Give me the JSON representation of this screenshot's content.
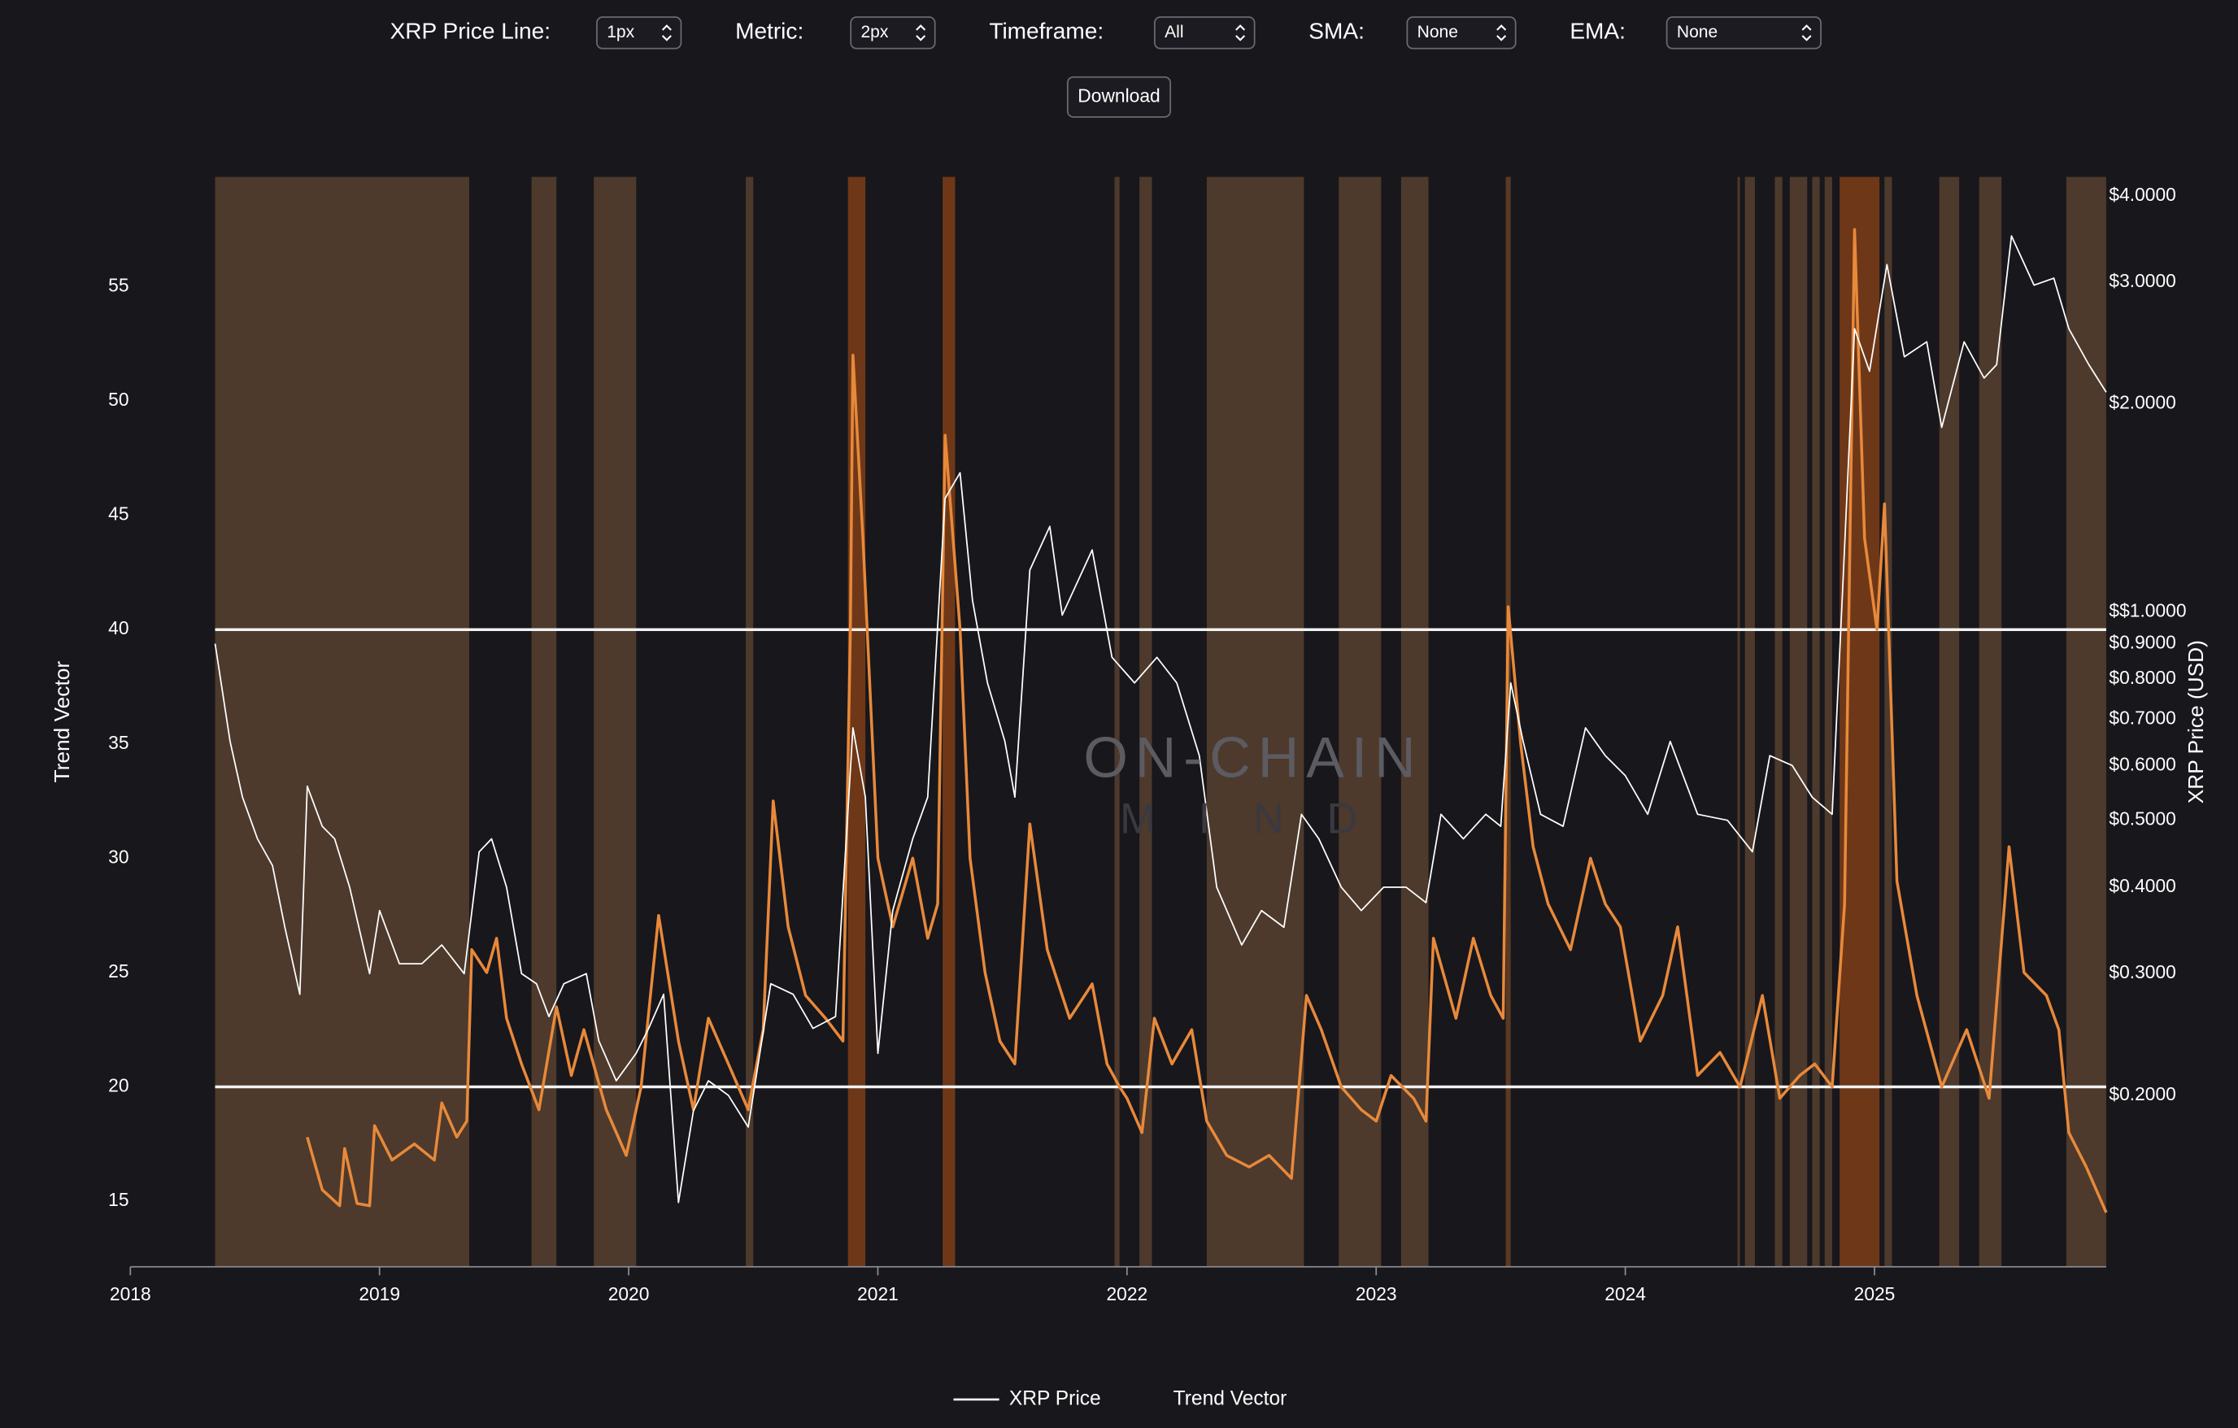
{
  "controls": [
    {
      "label": "XRP Price Line:",
      "value": "1px"
    },
    {
      "label": "Metric:",
      "value": "2px"
    },
    {
      "label": "Timeframe:",
      "value": "All"
    },
    {
      "label": "SMA:",
      "value": "None"
    },
    {
      "label": "EMA:",
      "value": "None"
    }
  ],
  "download_button": "Download",
  "chart_data": {
    "type": "line",
    "watermark": [
      "ON-CHAIN",
      "MIND"
    ],
    "ylabel": "Trend Vector",
    "y2label": "XRP Price (USD)",
    "xlim": [
      2018,
      2025.93
    ],
    "xticks": [
      2018,
      2019,
      2020,
      2021,
      2022,
      2023,
      2024,
      2025
    ],
    "ylim": [
      12.13,
      59.8
    ],
    "yticks": [
      15,
      20,
      25,
      30,
      35,
      40,
      45,
      50,
      55
    ],
    "y2lim": [
      0.113,
      4.26
    ],
    "y2log": true,
    "y2ticks": [
      {
        "value": 4,
        "label": "$4.0000"
      },
      {
        "value": 3,
        "label": "$3.0000"
      },
      {
        "value": 2,
        "label": "$2.0000"
      },
      {
        "value": 1,
        "label": "$$1.0000"
      },
      {
        "value": 0.9,
        "label": "$0.9000"
      },
      {
        "value": 0.8,
        "label": "$0.8000"
      },
      {
        "value": 0.7,
        "label": "$0.7000"
      },
      {
        "value": 0.6,
        "label": "$0.6000"
      },
      {
        "value": 0.5,
        "label": "$0.5000"
      },
      {
        "value": 0.4,
        "label": "$0.4000"
      },
      {
        "value": 0.3,
        "label": "$0.3000"
      },
      {
        "value": 0.2,
        "label": "$0.2000"
      }
    ],
    "hlines": [
      40,
      20
    ],
    "hline_color": "#f2f2f2",
    "bands": [
      {
        "x": [
          2018.34,
          2019.36
        ],
        "color": "#4d3a2c"
      },
      {
        "x": [
          2019.61,
          2019.71
        ],
        "color": "#4d3a2c"
      },
      {
        "x": [
          2019.86,
          2020.03
        ],
        "color": "#4d3a2c"
      },
      {
        "x": [
          2020.47,
          2020.5
        ],
        "color": "#4d3a2c"
      },
      {
        "x": [
          2020.88,
          2020.95
        ],
        "color": "#6e3818"
      },
      {
        "x": [
          2021.26,
          2021.31
        ],
        "color": "#6e3818"
      },
      {
        "x": [
          2021.95,
          2021.97
        ],
        "color": "#4d3a2c"
      },
      {
        "x": [
          2022.05,
          2022.1
        ],
        "color": "#4d3a2c"
      },
      {
        "x": [
          2022.32,
          2022.71
        ],
        "color": "#4d3a2c"
      },
      {
        "x": [
          2022.85,
          2023.02
        ],
        "color": "#4d3a2c"
      },
      {
        "x": [
          2023.1,
          2023.21
        ],
        "color": "#4d3a2c"
      },
      {
        "x": [
          2023.52,
          2023.54
        ],
        "color": "#5a3a24"
      },
      {
        "x": [
          2024.45,
          2024.46
        ],
        "color": "#4d3a2c"
      },
      {
        "x": [
          2024.48,
          2024.52
        ],
        "color": "#4d3a2c"
      },
      {
        "x": [
          2024.6,
          2024.63
        ],
        "color": "#4d3a2c"
      },
      {
        "x": [
          2024.66,
          2024.73
        ],
        "color": "#4d3a2c"
      },
      {
        "x": [
          2024.75,
          2024.78
        ],
        "color": "#4d3a2c"
      },
      {
        "x": [
          2024.8,
          2024.83
        ],
        "color": "#4d3a2c"
      },
      {
        "x": [
          2024.86,
          2025.02
        ],
        "color": "#6e3818"
      },
      {
        "x": [
          2025.04,
          2025.07
        ],
        "color": "#4d3a2c"
      },
      {
        "x": [
          2025.26,
          2025.34
        ],
        "color": "#4d3a2c"
      },
      {
        "x": [
          2025.42,
          2025.51
        ],
        "color": "#4d3a2c"
      },
      {
        "x": [
          2025.77,
          2025.93
        ],
        "color": "#4d3a2c"
      }
    ],
    "series": [
      {
        "name": "XRP Price",
        "color": "#ffffff",
        "width": 1,
        "axis": "y2",
        "x": [
          2018.34,
          2018.4,
          2018.45,
          2018.51,
          2018.57,
          2018.62,
          2018.68,
          2018.71,
          2018.77,
          2018.82,
          2018.88,
          2018.96,
          2019.0,
          2019.08,
          2019.17,
          2019.25,
          2019.34,
          2019.4,
          2019.45,
          2019.51,
          2019.57,
          2019.63,
          2019.68,
          2019.74,
          2019.83,
          2019.88,
          2019.95,
          2020.03,
          2020.08,
          2020.14,
          2020.2,
          2020.26,
          2020.32,
          2020.4,
          2020.48,
          2020.57,
          2020.66,
          2020.74,
          2020.83,
          2020.9,
          2020.95,
          2021.0,
          2021.06,
          2021.14,
          2021.2,
          2021.27,
          2021.33,
          2021.38,
          2021.44,
          2021.51,
          2021.55,
          2021.61,
          2021.69,
          2021.74,
          2021.86,
          2021.94,
          2022.03,
          2022.12,
          2022.2,
          2022.29,
          2022.36,
          2022.46,
          2022.54,
          2022.63,
          2022.7,
          2022.77,
          2022.86,
          2022.94,
          2023.03,
          2023.12,
          2023.2,
          2023.26,
          2023.35,
          2023.44,
          2023.5,
          2023.54,
          2023.59,
          2023.66,
          2023.75,
          2023.84,
          2023.92,
          2024.0,
          2024.09,
          2024.18,
          2024.29,
          2024.41,
          2024.51,
          2024.58,
          2024.67,
          2024.75,
          2024.83,
          2024.87,
          2024.92,
          2024.98,
          2025.05,
          2025.12,
          2025.21,
          2025.27,
          2025.36,
          2025.44,
          2025.49,
          2025.55,
          2025.64,
          2025.72,
          2025.78,
          2025.86,
          2025.93
        ],
        "values": [
          0.9,
          0.65,
          0.54,
          0.47,
          0.43,
          0.35,
          0.28,
          0.56,
          0.49,
          0.47,
          0.4,
          0.3,
          0.37,
          0.31,
          0.31,
          0.33,
          0.3,
          0.45,
          0.47,
          0.4,
          0.3,
          0.29,
          0.26,
          0.29,
          0.3,
          0.24,
          0.21,
          0.23,
          0.25,
          0.28,
          0.14,
          0.19,
          0.21,
          0.2,
          0.18,
          0.29,
          0.28,
          0.25,
          0.26,
          0.68,
          0.54,
          0.23,
          0.37,
          0.47,
          0.54,
          1.46,
          1.59,
          1.04,
          0.79,
          0.65,
          0.54,
          1.15,
          1.33,
          0.99,
          1.23,
          0.86,
          0.79,
          0.86,
          0.79,
          0.62,
          0.4,
          0.33,
          0.37,
          0.35,
          0.51,
          0.47,
          0.4,
          0.37,
          0.4,
          0.4,
          0.38,
          0.51,
          0.47,
          0.51,
          0.49,
          0.79,
          0.65,
          0.51,
          0.49,
          0.68,
          0.62,
          0.58,
          0.51,
          0.65,
          0.51,
          0.5,
          0.45,
          0.62,
          0.6,
          0.54,
          0.51,
          1.04,
          2.57,
          2.23,
          3.18,
          2.34,
          2.46,
          1.85,
          2.46,
          2.18,
          2.28,
          3.5,
          2.97,
          3.04,
          2.57,
          2.28,
          2.08
        ]
      },
      {
        "name": "Trend Vector",
        "color": "#e8893a",
        "width": 2,
        "axis": "y",
        "x": [
          2018.71,
          2018.77,
          2018.84,
          2018.86,
          2018.91,
          2018.96,
          2018.98,
          2019.05,
          2019.14,
          2019.22,
          2019.25,
          2019.31,
          2019.35,
          2019.37,
          2019.43,
          2019.47,
          2019.51,
          2019.57,
          2019.64,
          2019.71,
          2019.77,
          2019.82,
          2019.91,
          2019.99,
          2020.05,
          2020.12,
          2020.2,
          2020.26,
          2020.32,
          2020.4,
          2020.48,
          2020.54,
          2020.58,
          2020.64,
          2020.71,
          2020.79,
          2020.86,
          2020.89,
          2020.9,
          2020.94,
          2021.0,
          2021.06,
          2021.14,
          2021.2,
          2021.24,
          2021.27,
          2021.33,
          2021.37,
          2021.43,
          2021.49,
          2021.55,
          2021.61,
          2021.68,
          2021.77,
          2021.86,
          2021.92,
          2021.97,
          2022.0,
          2022.06,
          2022.11,
          2022.18,
          2022.26,
          2022.32,
          2022.4,
          2022.49,
          2022.57,
          2022.66,
          2022.72,
          2022.78,
          2022.86,
          2022.94,
          2023.0,
          2023.06,
          2023.15,
          2023.2,
          2023.23,
          2023.32,
          2023.39,
          2023.46,
          2023.51,
          2023.53,
          2023.58,
          2023.63,
          2023.69,
          2023.78,
          2023.86,
          2023.92,
          2023.98,
          2024.06,
          2024.15,
          2024.21,
          2024.29,
          2024.38,
          2024.46,
          2024.55,
          2024.62,
          2024.7,
          2024.76,
          2024.83,
          2024.88,
          2024.92,
          2024.96,
          2025.01,
          2025.04,
          2025.09,
          2025.17,
          2025.27,
          2025.37,
          2025.46,
          2025.5,
          2025.54,
          2025.6,
          2025.69,
          2025.74,
          2025.78,
          2025.85,
          2025.93
        ],
        "values": [
          17.8,
          15.5,
          14.8,
          17.3,
          14.9,
          14.8,
          18.3,
          16.8,
          17.5,
          16.8,
          19.3,
          17.8,
          18.5,
          26,
          25,
          26.5,
          23,
          21,
          19,
          23.5,
          20.5,
          22.5,
          19,
          17,
          20,
          27.5,
          22,
          19,
          23,
          21,
          19,
          22.5,
          32.5,
          27,
          24,
          23,
          22,
          40,
          52,
          44,
          30,
          27,
          30,
          26.5,
          28,
          48.5,
          40,
          30,
          25,
          22,
          21,
          31.5,
          26,
          23,
          24.5,
          21,
          20,
          19.5,
          18,
          23,
          21,
          22.5,
          18.5,
          17,
          16.5,
          17,
          16,
          24,
          22.5,
          20,
          19,
          18.5,
          20.5,
          19.5,
          18.5,
          26.5,
          23,
          26.5,
          24,
          23,
          41,
          35,
          30.5,
          28,
          26,
          30,
          28,
          27,
          22,
          24,
          27,
          20.5,
          21.5,
          20,
          24,
          19.5,
          20.5,
          21,
          20,
          28,
          57.5,
          44,
          40,
          45.5,
          29,
          24,
          20,
          22.5,
          19.5,
          25,
          30.5,
          25,
          24,
          22.5,
          18,
          16.5,
          14.5
        ]
      }
    ]
  }
}
